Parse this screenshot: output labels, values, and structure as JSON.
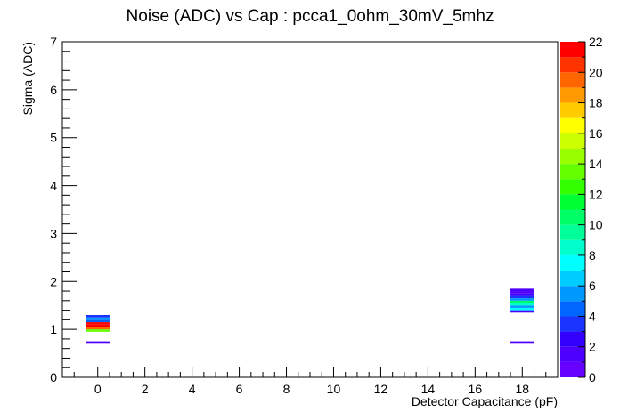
{
  "chart_data": {
    "type": "heatmap",
    "title": "Noise (ADC) vs Cap : pcca1_0ohm_30mV_5mhz",
    "xlabel": "Detector Capacitance (pF)",
    "ylabel": "Sigma (ADC)",
    "xlim": [
      -1.5,
      19.5
    ],
    "ylim": [
      0,
      7
    ],
    "x_ticks": [
      0,
      2,
      4,
      6,
      8,
      10,
      12,
      14,
      16,
      18
    ],
    "y_ticks": [
      0,
      1,
      2,
      3,
      4,
      5,
      6,
      7
    ],
    "z_range": [
      0,
      22
    ],
    "z_ticks": [
      0,
      2,
      4,
      6,
      8,
      10,
      12,
      14,
      16,
      18,
      20,
      22
    ],
    "palette": [
      "#6600ff",
      "#4d00ff",
      "#3300ff",
      "#1a33ff",
      "#0066ff",
      "#0099ff",
      "#00ccff",
      "#00ffff",
      "#00ffcc",
      "#00ff99",
      "#00ff66",
      "#00ff33",
      "#33ff00",
      "#66ff00",
      "#99ff00",
      "#ccff00",
      "#ffff00",
      "#ffcc00",
      "#ff9900",
      "#ff6600",
      "#ff3300",
      "#ff0000"
    ],
    "cells": [
      {
        "x": 0,
        "y": 0.725,
        "z": 1
      },
      {
        "x": 0,
        "y": 0.975,
        "z": 13
      },
      {
        "x": 0,
        "y": 1.025,
        "z": 19
      },
      {
        "x": 0,
        "y": 1.075,
        "z": 21
      },
      {
        "x": 0,
        "y": 1.125,
        "z": 21
      },
      {
        "x": 0,
        "y": 1.175,
        "z": 4
      },
      {
        "x": 0,
        "y": 1.225,
        "z": 5
      },
      {
        "x": 0,
        "y": 1.275,
        "z": 3
      },
      {
        "x": 18,
        "y": 0.725,
        "z": 1
      },
      {
        "x": 18,
        "y": 1.375,
        "z": 1
      },
      {
        "x": 18,
        "y": 1.425,
        "z": 7
      },
      {
        "x": 18,
        "y": 1.475,
        "z": 5
      },
      {
        "x": 18,
        "y": 1.525,
        "z": 8
      },
      {
        "x": 18,
        "y": 1.575,
        "z": 10
      },
      {
        "x": 18,
        "y": 1.625,
        "z": 5
      },
      {
        "x": 18,
        "y": 1.675,
        "z": 3
      },
      {
        "x": 18,
        "y": 1.725,
        "z": 1
      },
      {
        "x": 18,
        "y": 1.775,
        "z": 1
      },
      {
        "x": 18,
        "y": 1.825,
        "z": 1
      }
    ]
  }
}
